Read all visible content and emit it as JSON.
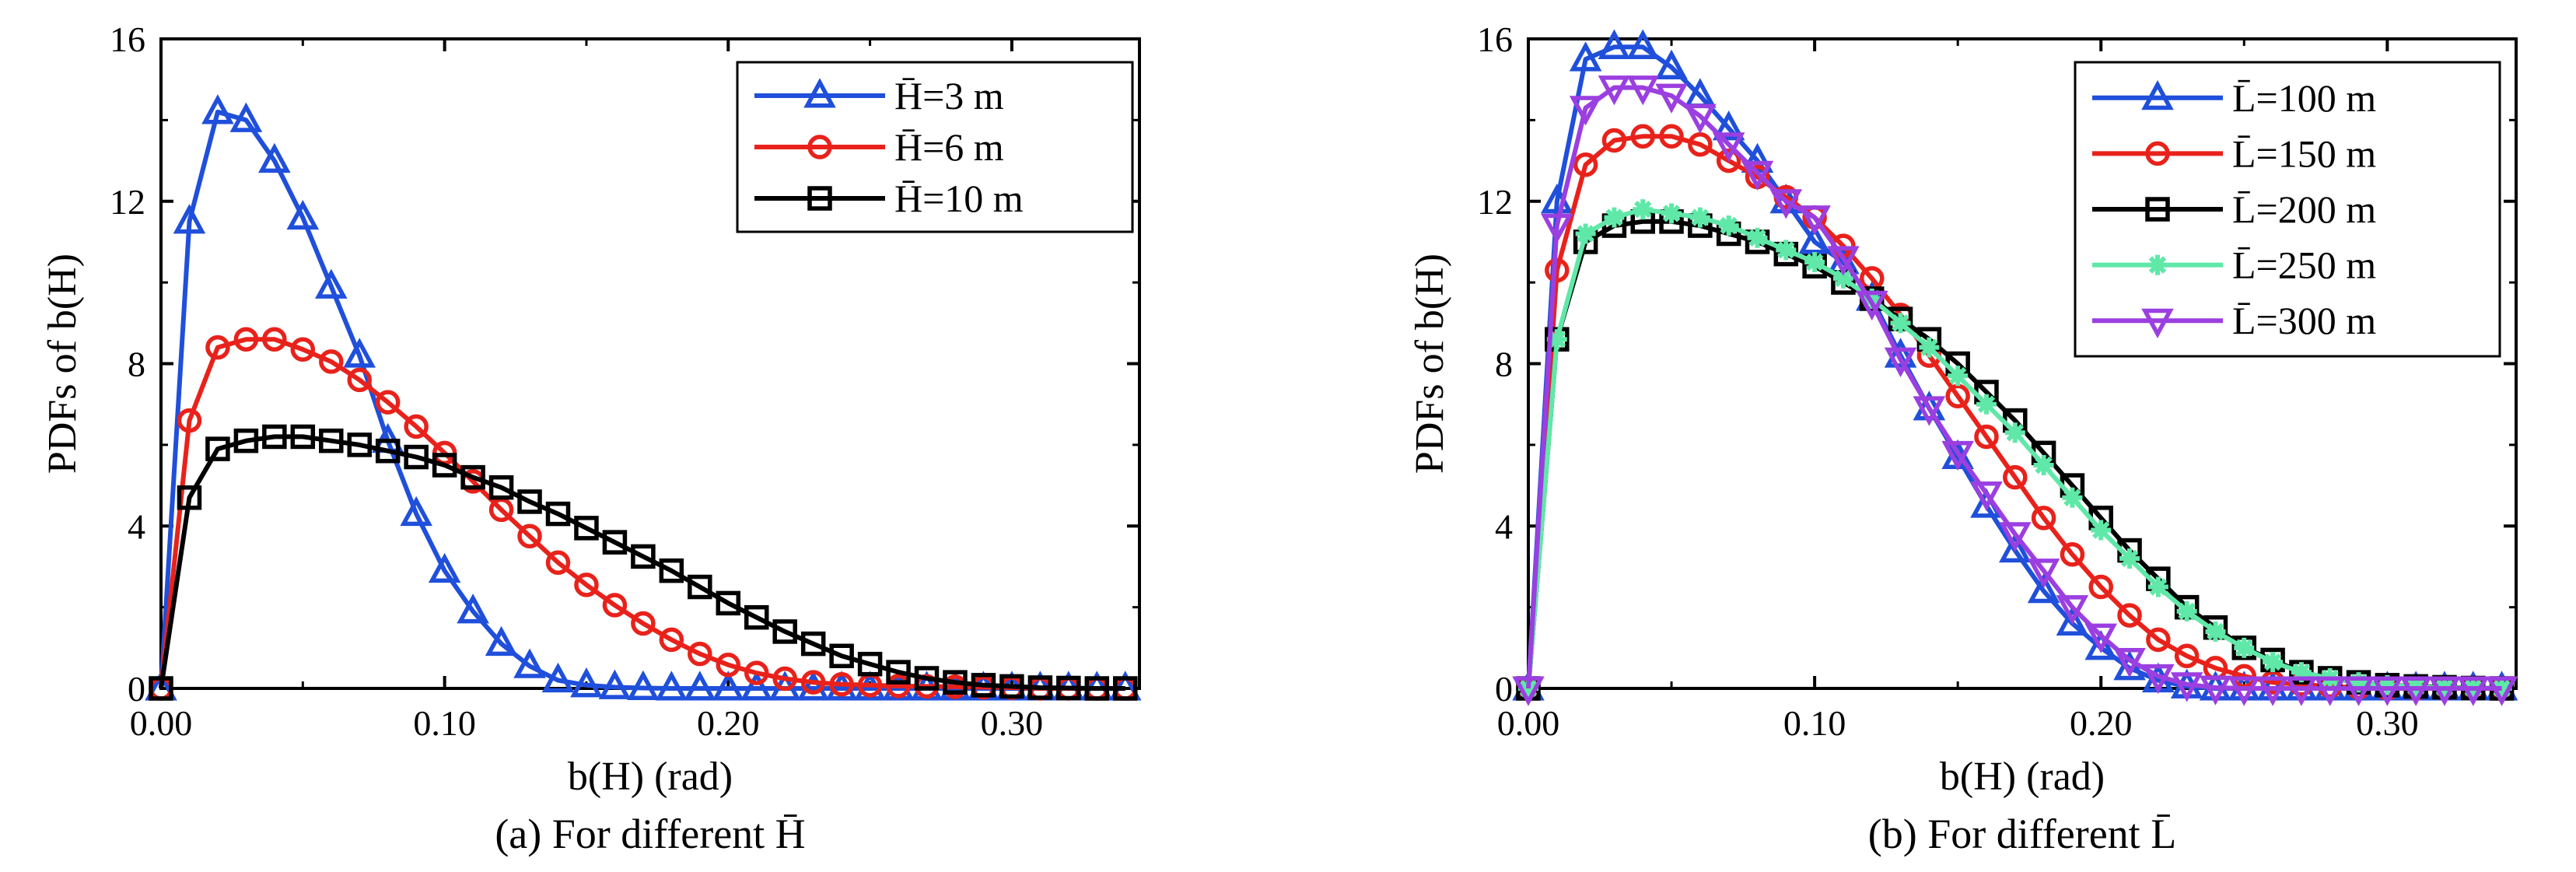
{
  "chart_data": [
    {
      "type": "line",
      "caption": "(a) For different H̄",
      "xlabel": "b(H) (rad)",
      "ylabel": "PDFs of b(H)",
      "xlim": [
        0,
        0.345
      ],
      "ylim": [
        0,
        16
      ],
      "xticks": [
        0,
        0.1,
        0.2,
        0.3
      ],
      "xtick_labels": [
        "0.00",
        "0.10",
        "0.20",
        "0.30"
      ],
      "yticks": [
        0,
        4,
        8,
        12,
        16
      ],
      "ytick_labels": [
        "0",
        "4",
        "8",
        "12",
        "16"
      ],
      "legend_position": "top-right",
      "x": [
        0,
        0.01,
        0.02,
        0.03,
        0.04,
        0.05,
        0.06,
        0.07,
        0.08,
        0.09,
        0.1,
        0.11,
        0.12,
        0.13,
        0.14,
        0.15,
        0.16,
        0.17,
        0.18,
        0.19,
        0.2,
        0.21,
        0.22,
        0.23,
        0.24,
        0.25,
        0.26,
        0.27,
        0.28,
        0.29,
        0.3,
        0.31,
        0.32,
        0.33,
        0.34
      ],
      "series": [
        {
          "name": "H̄=3 m",
          "color": "#1f4fdb",
          "marker": "triangle",
          "values": [
            0,
            11.5,
            14.2,
            14.0,
            13.0,
            11.6,
            9.9,
            8.2,
            6.1,
            4.3,
            2.9,
            1.9,
            1.1,
            0.55,
            0.2,
            0.08,
            0.03,
            0.01,
            0,
            0,
            0,
            0,
            0,
            0,
            0,
            0,
            0,
            0,
            0,
            0,
            0,
            0,
            0,
            0,
            0
          ]
        },
        {
          "name": "H̄=6 m",
          "color": "#e8221b",
          "marker": "circle",
          "values": [
            0,
            6.6,
            8.4,
            8.6,
            8.6,
            8.35,
            8.05,
            7.6,
            7.05,
            6.45,
            5.8,
            5.1,
            4.4,
            3.75,
            3.1,
            2.55,
            2.05,
            1.6,
            1.2,
            0.85,
            0.58,
            0.38,
            0.24,
            0.15,
            0.1,
            0.08,
            0.06,
            0.05,
            0.04,
            0.03,
            0.02,
            0,
            0,
            0,
            0
          ]
        },
        {
          "name": "H̄=10 m",
          "color": "#000000",
          "marker": "square",
          "values": [
            0,
            4.7,
            5.9,
            6.1,
            6.2,
            6.2,
            6.1,
            6.0,
            5.85,
            5.7,
            5.5,
            5.2,
            4.95,
            4.6,
            4.3,
            3.95,
            3.6,
            3.25,
            2.9,
            2.5,
            2.1,
            1.75,
            1.4,
            1.1,
            0.8,
            0.6,
            0.4,
            0.25,
            0.15,
            0.08,
            0.05,
            0.02,
            0.01,
            0,
            0
          ]
        }
      ]
    },
    {
      "type": "line",
      "caption": "(b) For different L̄",
      "xlabel": "b(H) (rad)",
      "ylabel": "PDFs of b(H)",
      "xlim": [
        0,
        0.345
      ],
      "ylim": [
        0,
        16
      ],
      "xticks": [
        0,
        0.1,
        0.2,
        0.3
      ],
      "xtick_labels": [
        "0.00",
        "0.10",
        "0.20",
        "0.30"
      ],
      "yticks": [
        0,
        4,
        8,
        12,
        16
      ],
      "ytick_labels": [
        "0",
        "4",
        "8",
        "12",
        "16"
      ],
      "legend_position": "top-right",
      "x": [
        0,
        0.01,
        0.02,
        0.03,
        0.04,
        0.05,
        0.06,
        0.07,
        0.08,
        0.09,
        0.1,
        0.11,
        0.12,
        0.13,
        0.14,
        0.15,
        0.16,
        0.17,
        0.18,
        0.19,
        0.2,
        0.21,
        0.22,
        0.23,
        0.24,
        0.25,
        0.26,
        0.27,
        0.28,
        0.29,
        0.3,
        0.31,
        0.32,
        0.33,
        0.34
      ],
      "series": [
        {
          "name": "L̄=100 m",
          "color": "#1f4fdb",
          "marker": "triangle",
          "values": [
            0,
            12.0,
            15.5,
            15.8,
            15.8,
            15.3,
            14.6,
            13.8,
            13.0,
            12.0,
            11.0,
            10.5,
            9.6,
            8.2,
            6.9,
            5.7,
            4.5,
            3.4,
            2.4,
            1.6,
            1.0,
            0.5,
            0.2,
            0.05,
            0,
            0,
            0,
            0,
            0,
            0,
            0,
            0,
            0,
            0,
            0
          ]
        },
        {
          "name": "L̄=150 m",
          "color": "#e8221b",
          "marker": "circle",
          "values": [
            0,
            10.3,
            12.9,
            13.5,
            13.6,
            13.6,
            13.4,
            13.0,
            12.6,
            12.1,
            11.6,
            10.9,
            10.1,
            9.2,
            8.2,
            7.2,
            6.2,
            5.2,
            4.2,
            3.3,
            2.5,
            1.8,
            1.2,
            0.8,
            0.5,
            0.3,
            0.15,
            0.1,
            0.05,
            0.02,
            0,
            0,
            0,
            0,
            0
          ]
        },
        {
          "name": "L̄=200 m",
          "color": "#000000",
          "marker": "square",
          "values": [
            0,
            8.6,
            11.0,
            11.4,
            11.5,
            11.5,
            11.4,
            11.2,
            11.0,
            10.7,
            10.4,
            10.0,
            9.6,
            9.1,
            8.6,
            8.0,
            7.3,
            6.6,
            5.8,
            5.0,
            4.2,
            3.4,
            2.7,
            2.0,
            1.5,
            1.0,
            0.7,
            0.4,
            0.25,
            0.15,
            0.08,
            0.05,
            0.03,
            0.01,
            0
          ]
        },
        {
          "name": "L̄=250 m",
          "color": "#5fe8a8",
          "marker": "asterisk",
          "values": [
            0,
            8.6,
            11.2,
            11.6,
            11.8,
            11.7,
            11.6,
            11.4,
            11.1,
            10.8,
            10.5,
            10.1,
            9.6,
            9.0,
            8.4,
            7.7,
            7.0,
            6.3,
            5.5,
            4.7,
            3.9,
            3.2,
            2.5,
            1.9,
            1.4,
            1.0,
            0.65,
            0.4,
            0.25,
            0.15,
            0.08,
            0.04,
            0.02,
            0.01,
            0
          ]
        },
        {
          "name": "L̄=300 m",
          "color": "#9b3fe0",
          "marker": "triangle-down",
          "values": [
            0,
            11.4,
            14.3,
            14.8,
            14.8,
            14.6,
            14.1,
            13.4,
            12.7,
            12.0,
            11.6,
            10.6,
            9.5,
            8.1,
            6.9,
            5.8,
            4.8,
            3.8,
            2.9,
            2.0,
            1.3,
            0.7,
            0.3,
            0.1,
            0.02,
            0,
            0,
            0,
            0,
            0,
            0,
            0,
            0,
            0,
            0
          ]
        }
      ]
    }
  ]
}
